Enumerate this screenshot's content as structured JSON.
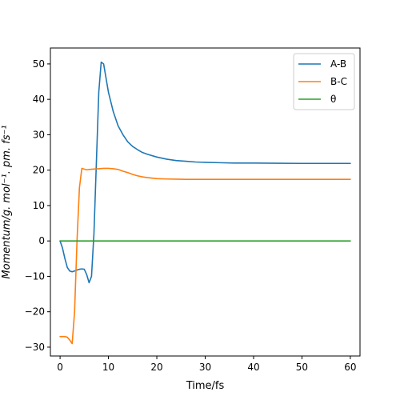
{
  "chart_data": {
    "type": "line",
    "title": "",
    "xlabel": "Time/fs",
    "ylabel": "Momentum/g. mol⁻¹. pm. fs⁻¹",
    "xlim": [
      -2,
      62
    ],
    "ylim": [
      -32.5,
      54.5
    ],
    "xticks": [
      0,
      10,
      20,
      30,
      40,
      50,
      60
    ],
    "yticks": [
      -30,
      -20,
      -10,
      0,
      10,
      20,
      30,
      40,
      50
    ],
    "grid": false,
    "legend_position": "top-right",
    "series": [
      {
        "name": "A-B",
        "color": "#1f77b4",
        "x": [
          0,
          0.5,
          1,
          1.5,
          2,
          2.5,
          3,
          3.5,
          4,
          4.5,
          5,
          5.5,
          6,
          6.5,
          7,
          7.5,
          8,
          8.5,
          9,
          9.5,
          10,
          11,
          12,
          13,
          14,
          15,
          16,
          17,
          18,
          20,
          22,
          24,
          26,
          28,
          30,
          33,
          36,
          40,
          45,
          50,
          55,
          60
        ],
        "y": [
          0,
          -2,
          -5,
          -7.5,
          -8.5,
          -8.7,
          -8.5,
          -8.2,
          -8,
          -7.9,
          -8,
          -9.5,
          -11.8,
          -10,
          2,
          22,
          42,
          50.5,
          50,
          46,
          42,
          36.5,
          32.5,
          30,
          28,
          26.7,
          25.8,
          25,
          24.5,
          23.7,
          23.1,
          22.7,
          22.5,
          22.3,
          22.2,
          22.1,
          22.0,
          22.0,
          21.95,
          21.9,
          21.9,
          21.9
        ]
      },
      {
        "name": "B-C",
        "color": "#ff7f0e",
        "x": [
          0,
          0.5,
          1,
          1.5,
          2,
          2.5,
          3,
          3.5,
          4,
          4.5,
          5,
          5.5,
          6,
          7,
          8,
          9,
          10,
          11,
          12,
          13,
          14,
          15,
          16,
          17,
          18,
          20,
          22,
          24,
          26,
          28,
          30,
          35,
          40,
          45,
          50,
          55,
          60
        ],
        "y": [
          -27,
          -27,
          -27,
          -27.2,
          -28,
          -29,
          -20,
          0,
          15,
          20.5,
          20.3,
          20.1,
          20.2,
          20.3,
          20.4,
          20.5,
          20.5,
          20.4,
          20.2,
          19.7,
          19.3,
          18.8,
          18.4,
          18.1,
          17.9,
          17.6,
          17.5,
          17.45,
          17.4,
          17.4,
          17.4,
          17.4,
          17.4,
          17.4,
          17.4,
          17.4,
          17.4
        ]
      },
      {
        "name": "θ",
        "color": "#2ca02c",
        "x": [
          0,
          60
        ],
        "y": [
          0,
          0
        ]
      }
    ]
  }
}
